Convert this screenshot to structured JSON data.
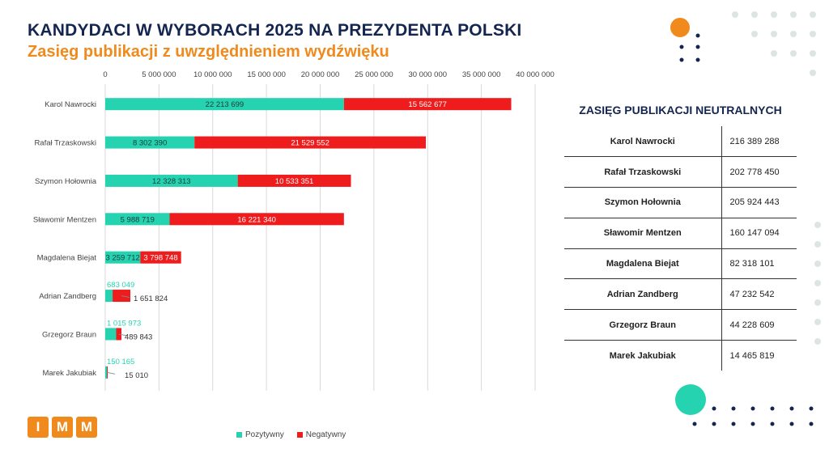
{
  "header": {
    "title": "KANDYDACI W WYBORACH 2025 NA PREZYDENTA POLSKI",
    "subtitle": "Zasięg publikacji z uwzględnieniem wydźwięku"
  },
  "colors": {
    "positive": "#26d3b0",
    "negative": "#ee1c1c",
    "title": "#14264f",
    "accent": "#f08a1c",
    "grid": "#d9d9d9"
  },
  "chart_data": {
    "type": "bar",
    "orientation": "horizontal",
    "stacked": true,
    "title": "Zasięg publikacji z uwzględnieniem wydźwięku",
    "xlim": [
      0,
      40000000
    ],
    "x_ticks": [
      0,
      5000000,
      10000000,
      15000000,
      20000000,
      25000000,
      30000000,
      35000000,
      40000000
    ],
    "x_tick_labels": [
      "0",
      "5 000 000",
      "10 000 000",
      "15 000 000",
      "20 000 000",
      "25 000 000",
      "30 000 000",
      "35 000 000",
      "40 000 000"
    ],
    "categories": [
      "Karol Nawrocki",
      "Rafał Trzaskowski",
      "Szymon Hołownia",
      "Sławomir Mentzen",
      "Magdalena Biejat",
      "Adrian Zandberg",
      "Grzegorz Braun",
      "Marek Jakubiak"
    ],
    "series": [
      {
        "name": "Pozytywny",
        "values": [
          22213699,
          8302390,
          12328313,
          5988719,
          3259712,
          683049,
          1015973,
          150165
        ],
        "labels": [
          "22 213 699",
          "8 302 390",
          "12 328 313",
          "5 988 719",
          "3 259 712",
          "683 049",
          "1 015 973",
          "150 165"
        ]
      },
      {
        "name": "Negatywny",
        "values": [
          15562677,
          21529552,
          10533351,
          16221340,
          3798748,
          1651824,
          489843,
          15010
        ],
        "labels": [
          "15 562 677",
          "21 529 552",
          "10 533 351",
          "16 221 340",
          "3 798 748",
          "1 651 824",
          "489 843",
          "15 010"
        ]
      }
    ],
    "legend": [
      "Pozytywny",
      "Negatywny"
    ],
    "legend_position": "bottom"
  },
  "neutral_table": {
    "title": "ZASIĘG PUBLIKACJI NEUTRALNYCH",
    "rows": [
      {
        "name": "Karol Nawrocki",
        "value": "216 389 288"
      },
      {
        "name": "Rafał Trzaskowski",
        "value": "202 778 450"
      },
      {
        "name": "Szymon Hołownia",
        "value": "205 924 443"
      },
      {
        "name": "Sławomir Mentzen",
        "value": "160 147 094"
      },
      {
        "name": "Magdalena Biejat",
        "value": "82 318 101"
      },
      {
        "name": "Adrian Zandberg",
        "value": "47 232 542"
      },
      {
        "name": "Grzegorz Braun",
        "value": "44 228 609"
      },
      {
        "name": "Marek Jakubiak",
        "value": "14 465 819"
      }
    ]
  },
  "logo": {
    "letters": [
      "I",
      "M",
      "M"
    ]
  }
}
